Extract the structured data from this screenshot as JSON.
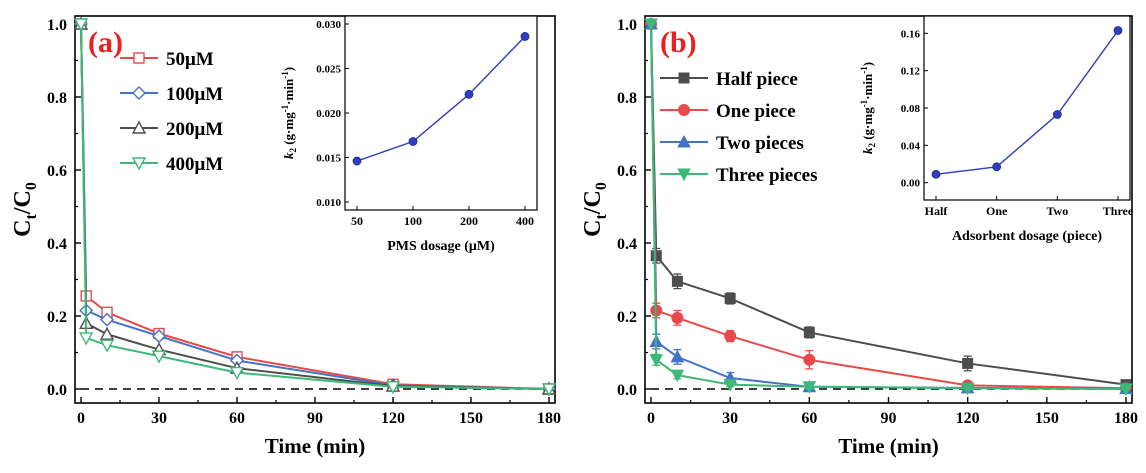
{
  "chart_data": [
    {
      "type": "line",
      "panel_label": "(a)",
      "xlabel": "Time (min)",
      "ylabel_main": "C",
      "ylabel_sub1": "t",
      "ylabel_slash": "/C",
      "ylabel_sub2": "0",
      "xlim": [
        0,
        180
      ],
      "ylim": [
        0,
        1.0
      ],
      "x_ticks": [
        0,
        30,
        60,
        90,
        120,
        150,
        180
      ],
      "y_ticks": [
        0.0,
        0.2,
        0.4,
        0.6,
        0.8,
        1.0
      ],
      "x_tick_labels": [
        "0",
        "30",
        "60",
        "90",
        "120",
        "150",
        "180"
      ],
      "y_tick_labels": [
        "0.0",
        "0.2",
        "0.4",
        "0.6",
        "0.8",
        "1.0"
      ],
      "reference_line_y": 0,
      "legend_position": "upper-left",
      "series": [
        {
          "name": "50μM",
          "color": "#e8494a",
          "marker": "square-open",
          "x": [
            0,
            2,
            10,
            30,
            60,
            120,
            180
          ],
          "y": [
            1.0,
            0.255,
            0.21,
            0.152,
            0.088,
            0.013,
            0.0
          ]
        },
        {
          "name": "100μM",
          "color": "#4472c4",
          "marker": "diamond-open",
          "x": [
            0,
            2,
            10,
            30,
            60,
            120,
            180
          ],
          "y": [
            1.0,
            0.215,
            0.19,
            0.145,
            0.078,
            0.01,
            0.0
          ]
        },
        {
          "name": "200μM",
          "color": "#4d4d4d",
          "marker": "triangle-up-open",
          "x": [
            0,
            2,
            10,
            30,
            60,
            120,
            180
          ],
          "y": [
            1.0,
            0.18,
            0.15,
            0.108,
            0.057,
            0.008,
            0.0
          ]
        },
        {
          "name": "400μM",
          "color": "#3cb878",
          "marker": "triangle-down-open",
          "x": [
            0,
            2,
            10,
            30,
            60,
            120,
            180
          ],
          "y": [
            1.0,
            0.14,
            0.12,
            0.09,
            0.045,
            0.006,
            0.0
          ]
        }
      ],
      "inset": {
        "type": "line",
        "xlabel": "PMS dosage (μM)",
        "ylabel_k": "k",
        "ylabel_k_sub": "2",
        "ylabel_units": " (g·mg",
        "ylabel_sup1": "-1",
        "ylabel_mid": "·min",
        "ylabel_sup2": "-1",
        "ylabel_close": ")",
        "categories": [
          "50",
          "100",
          "200",
          "400"
        ],
        "values": [
          0.0146,
          0.0168,
          0.0221,
          0.0286
        ],
        "ylim": [
          0.01,
          0.03
        ],
        "y_ticks": [
          0.01,
          0.015,
          0.02,
          0.025,
          0.03
        ],
        "y_tick_labels": [
          "0.010",
          "0.015",
          "0.020",
          "0.025",
          "0.030"
        ],
        "color": "#2e3fbf"
      }
    },
    {
      "type": "line",
      "panel_label": "(b)",
      "xlabel": "Time (min)",
      "ylabel_main": "C",
      "ylabel_sub1": "t",
      "ylabel_slash": "/C",
      "ylabel_sub2": "0",
      "xlim": [
        0,
        180
      ],
      "ylim": [
        0,
        1.0
      ],
      "x_ticks": [
        0,
        30,
        60,
        90,
        120,
        150,
        180
      ],
      "y_ticks": [
        0.0,
        0.2,
        0.4,
        0.6,
        0.8,
        1.0
      ],
      "x_tick_labels": [
        "0",
        "30",
        "60",
        "90",
        "120",
        "150",
        "180"
      ],
      "y_tick_labels": [
        "0.0",
        "0.2",
        "0.4",
        "0.6",
        "0.8",
        "1.0"
      ],
      "reference_line_y": 0,
      "legend_position": "upper-left",
      "series": [
        {
          "name": "Half piece",
          "color": "#4d4d4d",
          "marker": "square",
          "x": [
            0,
            2,
            10,
            30,
            60,
            120,
            180
          ],
          "y": [
            1.0,
            0.365,
            0.295,
            0.248,
            0.155,
            0.07,
            0.012
          ],
          "err": [
            0,
            0.02,
            0.02,
            0.015,
            0.015,
            0.02,
            0.01
          ]
        },
        {
          "name": "One piece",
          "color": "#e8494a",
          "marker": "circle",
          "x": [
            0,
            2,
            10,
            30,
            60,
            120,
            180
          ],
          "y": [
            1.0,
            0.215,
            0.195,
            0.145,
            0.08,
            0.01,
            0.002
          ],
          "err": [
            0,
            0.02,
            0.02,
            0.015,
            0.025,
            0.01,
            0.005
          ]
        },
        {
          "name": "Two pieces",
          "color": "#4472c4",
          "marker": "triangle-up",
          "x": [
            0,
            2,
            10,
            30,
            60,
            120,
            180
          ],
          "y": [
            1.0,
            0.13,
            0.088,
            0.03,
            0.006,
            0.003,
            0.001
          ],
          "err": [
            0,
            0.02,
            0.02,
            0.015,
            0.01,
            0.005,
            0.003
          ]
        },
        {
          "name": "Three pieces",
          "color": "#3cb878",
          "marker": "triangle-down",
          "x": [
            0,
            2,
            10,
            30,
            60,
            120,
            180
          ],
          "y": [
            1.0,
            0.08,
            0.038,
            0.012,
            0.006,
            0.002,
            0.0
          ],
          "err": [
            0,
            0.015,
            0.01,
            0.005,
            0.005,
            0.003,
            0.002
          ]
        }
      ],
      "inset": {
        "type": "line",
        "xlabel": "Adsorbent dosage (piece)",
        "ylabel_k": "k",
        "ylabel_k_sub": "2",
        "ylabel_units": " (g·mg",
        "ylabel_sup1": "-1",
        "ylabel_mid": "·min",
        "ylabel_sup2": "-1",
        "ylabel_close": ")",
        "categories": [
          "Half",
          "One",
          "Two",
          "Three"
        ],
        "values": [
          0.009,
          0.017,
          0.073,
          0.163
        ],
        "ylim": [
          -0.01,
          0.17
        ],
        "y_ticks": [
          0.0,
          0.04,
          0.08,
          0.12,
          0.16
        ],
        "y_tick_labels": [
          "0.00",
          "0.04",
          "0.08",
          "0.12",
          "0.16"
        ],
        "color": "#2e3fbf"
      }
    }
  ]
}
